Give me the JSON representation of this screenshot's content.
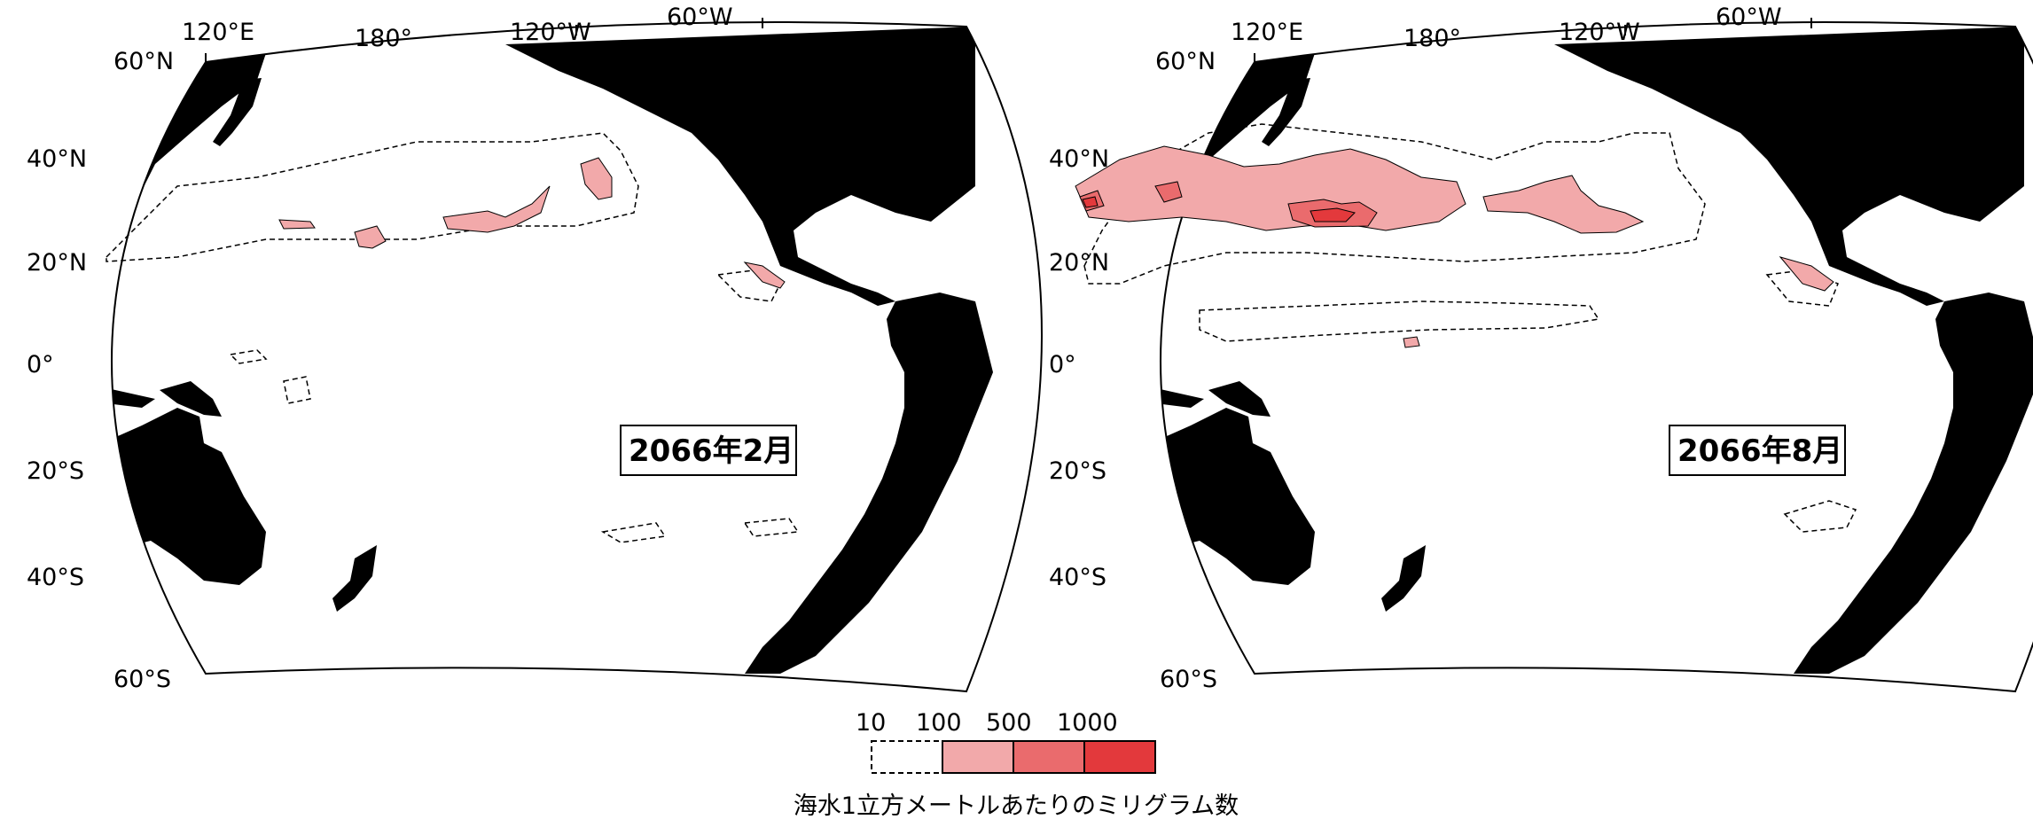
{
  "maps": [
    {
      "title": "2066年2月",
      "top_labels": [
        "120°E",
        "180°",
        "120°W",
        "60°W"
      ],
      "left_labels": [
        "60°N",
        "40°N",
        "20°N",
        "0°",
        "20°S",
        "40°S",
        "60°S"
      ]
    },
    {
      "title": "2066年8月",
      "top_labels": [
        "120°E",
        "180°",
        "120°W",
        "60°W"
      ],
      "left_labels": [
        "60°N",
        "40°N",
        "20°N",
        "0°",
        "20°S",
        "40°S",
        "60°S"
      ]
    }
  ],
  "legend": {
    "levels": [
      "10",
      "100",
      "500",
      "1000"
    ],
    "colors": [
      "#ffffff",
      "#f2a9aa",
      "#ea6b6d",
      "#e3393c"
    ],
    "caption": "海水1立方メートルあたりのミリグラム数"
  }
}
